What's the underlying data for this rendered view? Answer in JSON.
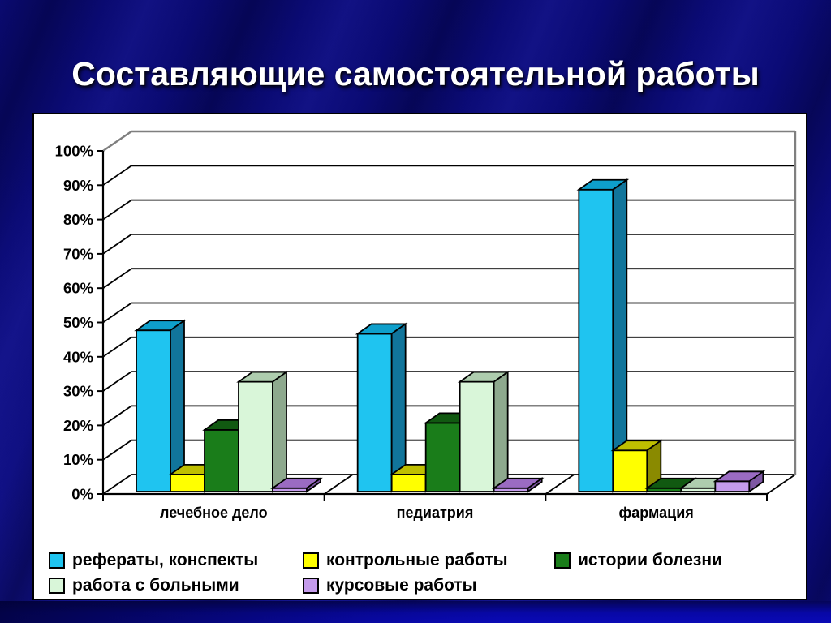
{
  "slide": {
    "title": "Составляющие самостоятельной работы"
  },
  "colors": {
    "background": "#0B0B77",
    "title_text": "#FFFFFF",
    "panel_background": "#FFFFFF",
    "panel_border": "#000000",
    "gridline": "#000000",
    "frame_edge": "#7F7F7F"
  },
  "chart_data": {
    "type": "bar",
    "style": "3d-column",
    "title": "",
    "xlabel": "",
    "ylabel": "",
    "ylim": [
      0,
      100
    ],
    "ytick_step": 10,
    "grid": true,
    "legend_position": "bottom",
    "categories": [
      "лечебное дело",
      "педиатрия",
      "фармация"
    ],
    "ytick_labels": [
      "0%",
      "10%",
      "20%",
      "30%",
      "40%",
      "50%",
      "60%",
      "70%",
      "80%",
      "90%",
      "100%"
    ],
    "series": [
      {
        "name": "рефераты, конспекты",
        "values": [
          47,
          46,
          88
        ],
        "color": "#1FC4F0",
        "color_side": "#11759B",
        "color_top": "#0E9FCB"
      },
      {
        "name": "контрольные работы",
        "values": [
          5,
          5,
          12
        ],
        "color": "#FFFF00",
        "color_side": "#8A8A00",
        "color_top": "#BFBF00"
      },
      {
        "name": "истории болезни",
        "values": [
          18,
          20,
          1
        ],
        "color": "#1A7D1A",
        "color_side": "#0A3D0A",
        "color_top": "#115911"
      },
      {
        "name": "работа с больными",
        "values": [
          32,
          32,
          1
        ],
        "color": "#D9F6D9",
        "color_side": "#8EA98E",
        "color_top": "#AECDAE"
      },
      {
        "name": "курсовые работы",
        "values": [
          1,
          1,
          3
        ],
        "color": "#C49BEB",
        "color_side": "#7E57A3",
        "color_top": "#9A6BC2"
      }
    ]
  }
}
